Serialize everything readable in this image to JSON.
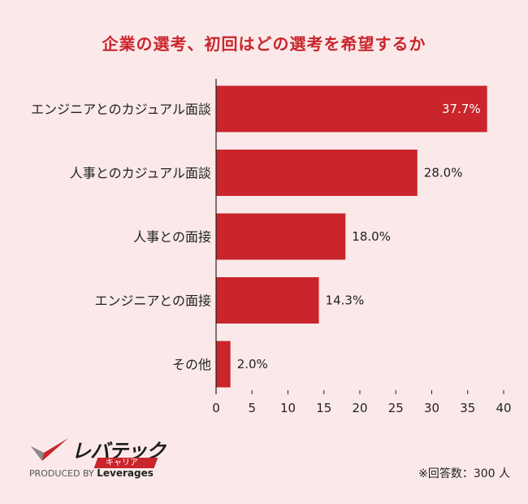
{
  "chart_data": {
    "type": "bar",
    "orientation": "horizontal",
    "title": "企業の選考、初回はどの選考を希望するか",
    "categories": [
      "エンジニアとのカジュアル面談",
      "人事とのカジュアル面談",
      "人事との面接",
      "エンジニアとの面接",
      "その他"
    ],
    "values": [
      37.7,
      28.0,
      18.0,
      14.3,
      2.0
    ],
    "value_labels": [
      "37.7%",
      "28.0%",
      "18.0%",
      "14.3%",
      "2.0%"
    ],
    "xlim": [
      0,
      40
    ],
    "xticks": [
      "0",
      "5",
      "10",
      "15",
      "20",
      "25",
      "30",
      "35",
      "40"
    ],
    "grid": false,
    "bar_color": "#c9252b"
  },
  "logo": {
    "main": "レバテック",
    "sub": "キャリア",
    "produced_by": "PRODUCED BY",
    "brand": "Leverages"
  },
  "footnote": "※回答数：300 人",
  "colors": {
    "accent": "#c9252b",
    "background": "#fbe9ea"
  }
}
